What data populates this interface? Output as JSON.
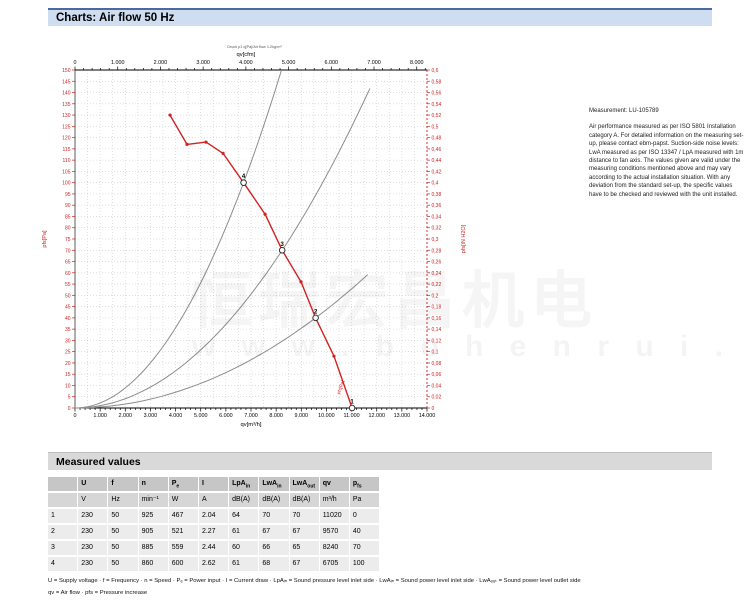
{
  "page": {
    "title": "Charts: Air flow 50 Hz"
  },
  "measurement": {
    "id_line": "Measurement: LU-105789",
    "body": "Air performance measured as per ISO 5801 Installation category A. For detailed information on the measuring set-up, please contact ebm-papst. Suction-side noise levels: LwA measured as per ISO 13347 / LpA measured with 1m distance to fan axis. The values given are valid under the measuring conditions mentioned above and may vary according to the actual installation situation. With any deviation from the standard set-up, the specific values have to be checked and reviewed with the unit installed."
  },
  "chart_data": {
    "type": "line",
    "note_above": "Druck p1 q[Pa]/Air flow 1.2kg/m³",
    "axes": {
      "x_bottom": {
        "label": "qv[m³/h]",
        "min": 0,
        "max": 14000,
        "major": 1000,
        "minor": 200
      },
      "x_top": {
        "label": "qv[cfm]",
        "min": 0,
        "max": 8000,
        "major": 1000,
        "minor": 200,
        "cfm_to_m3h": 1.699
      },
      "y_left": {
        "label": "pfs[Pa]",
        "min": 0,
        "max": 150,
        "major": 5
      },
      "y_right": {
        "label": "pfs[iN H2O]",
        "min": 0,
        "max": 0.6,
        "major": 0.02
      }
    },
    "fan_curve": {
      "label": "pfs[Pa]",
      "points": [
        [
          3780,
          130
        ],
        [
          4455,
          117
        ],
        [
          5210,
          118
        ],
        [
          5890,
          113
        ],
        [
          6705,
          100
        ],
        [
          7560,
          86
        ],
        [
          8240,
          70
        ],
        [
          8990,
          56
        ],
        [
          9570,
          40
        ],
        [
          10300,
          23
        ],
        [
          11020,
          0
        ]
      ]
    },
    "marker_dots": [
      [
        3780,
        130
      ],
      [
        4455,
        117
      ],
      [
        5210,
        118
      ],
      [
        5890,
        113
      ],
      [
        7560,
        86
      ],
      [
        8990,
        56
      ],
      [
        10300,
        23
      ]
    ],
    "system_curves": [
      {
        "through": [
          6705,
          100
        ],
        "q_end": 8200
      },
      {
        "through": [
          8240,
          70
        ],
        "q_end": 11730
      },
      {
        "through": [
          9570,
          40
        ],
        "q_end": 11890
      }
    ],
    "operating_points": [
      {
        "n": "1",
        "q": 11020,
        "p": 0
      },
      {
        "n": "2",
        "q": 9570,
        "p": 40
      },
      {
        "n": "3",
        "q": 8240,
        "p": 70
      },
      {
        "n": "4",
        "q": 6705,
        "p": 100
      }
    ],
    "colors": {
      "curve": "#d22222",
      "axis_red": "#cc2222",
      "system": "#8c8c8c",
      "grid": "#cccccc",
      "axis_black": "#333333"
    }
  },
  "measured_values": {
    "title": "Measured values",
    "columns": [
      {
        "label": "",
        "sub": ""
      },
      {
        "label": "U",
        "sub": ""
      },
      {
        "label": "f",
        "sub": ""
      },
      {
        "label": "n",
        "sub": ""
      },
      {
        "label": "P",
        "sub": "e"
      },
      {
        "label": "I",
        "sub": ""
      },
      {
        "label": "LpA",
        "sub": "in"
      },
      {
        "label": "LwA",
        "sub": "in"
      },
      {
        "label": "LwA",
        "sub": "out"
      },
      {
        "label": "qv",
        "sub": ""
      },
      {
        "label": "p",
        "sub": "fs"
      }
    ],
    "units": [
      "",
      "V",
      "Hz",
      "min⁻¹",
      "W",
      "A",
      "dB(A)",
      "dB(A)",
      "dB(A)",
      "m³/h",
      "Pa"
    ],
    "rows": [
      [
        "1",
        "230",
        "50",
        "925",
        "467",
        "2.04",
        "64",
        "70",
        "70",
        "11020",
        "0"
      ],
      [
        "2",
        "230",
        "50",
        "905",
        "521",
        "2.27",
        "61",
        "67",
        "67",
        "9570",
        "40"
      ],
      [
        "3",
        "230",
        "50",
        "885",
        "559",
        "2.44",
        "60",
        "66",
        "65",
        "8240",
        "70"
      ],
      [
        "4",
        "230",
        "50",
        "860",
        "600",
        "2.62",
        "61",
        "68",
        "67",
        "6705",
        "100"
      ]
    ],
    "legend_line1": "U = Supply voltage · f = Frequency · n = Speed · Pₑ = Power input · I = Current draw · LpAᵢₙ = Sound pressure level inlet side · LwAᵢₙ = Sound power level inlet side · LwAₒᵤₜ = Sound power level outlet side",
    "legend_line2": "qv = Air flow · pfs = Pressure increase"
  },
  "watermark": {
    "line1": "恒瑞宏昌机电",
    "line2": "w w w . b o h e n r u i . c n"
  }
}
